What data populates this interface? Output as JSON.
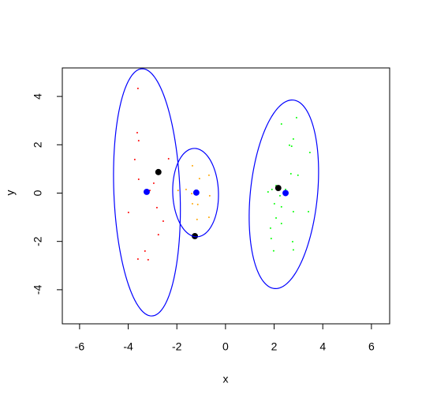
{
  "chart_data": {
    "type": "scatter",
    "xlabel": "x",
    "ylabel": "y",
    "xlim": [
      -6.71,
      6.75
    ],
    "ylim": [
      -5.41,
      5.18
    ],
    "xticks": [
      -6,
      -4,
      -2,
      0,
      2,
      4,
      6
    ],
    "yticks": [
      -4,
      -2,
      0,
      2,
      4
    ],
    "series": [
      {
        "color": "#ff0000",
        "cex": 0.3,
        "x": [
          -3.6,
          -3.63,
          -3.57,
          -3.73,
          -2.34,
          -3.57,
          -2.95,
          -3.11,
          -3.99,
          -2.82,
          -2.56,
          -2.76,
          -3.31,
          -3.6,
          -3.18
        ],
        "y": [
          4.33,
          2.5,
          2.17,
          1.39,
          1.42,
          0.57,
          0.41,
          0.11,
          -0.8,
          -0.6,
          -1.16,
          -1.72,
          -2.4,
          -2.73,
          -2.76
        ]
      },
      {
        "color": "#ffa500",
        "cex": 0.3,
        "x": [
          -1.36,
          -0.68,
          -1.07,
          -1.62,
          -1.95,
          -1.39,
          -0.65,
          -1.14,
          -1.36,
          -0.68,
          -1.17
        ],
        "y": [
          1.13,
          0.74,
          0.6,
          0.15,
          0.11,
          -0.02,
          -0.11,
          -0.47,
          -0.44,
          -1.0,
          -1.09
        ]
      },
      {
        "color": "#00ff00",
        "cex": 0.3,
        "x": [
          2.92,
          2.3,
          2.63,
          2.72,
          2.79,
          3.47,
          2.69,
          2.98,
          2.08,
          1.91,
          2.24,
          1.75,
          2.47,
          2.01,
          2.79,
          2.3,
          3.41,
          2.08,
          2.3,
          1.85,
          2.76,
          1.88,
          2.79,
          1.98
        ],
        "y": [
          3.12,
          2.86,
          1.98,
          1.94,
          2.24,
          1.68,
          0.8,
          0.74,
          0.31,
          0.15,
          -0.11,
          0.05,
          0.15,
          -0.44,
          -0.77,
          -0.57,
          -0.77,
          -1.03,
          -1.26,
          -1.45,
          -2.01,
          -1.88,
          -2.35,
          -2.39
        ]
      },
      {
        "color": "#0000ff",
        "cex": 1.2,
        "x": [
          -3.24,
          -1.2,
          2.47
        ],
        "y": [
          0.05,
          0.02,
          0.0
        ]
      },
      {
        "color": "#000000",
        "cex": 1.2,
        "x": [
          -2.76,
          -1.26,
          2.17
        ],
        "y": [
          0.87,
          -1.78,
          0.21
        ]
      }
    ],
    "ellipses": [
      {
        "color": "#0000ff",
        "center": [
          -3.23,
          0.03
        ],
        "axes": [
          5.12,
          1.36
        ],
        "angle": 92.3
      },
      {
        "color": "#0000ff",
        "center": [
          -1.23,
          0.02
        ],
        "axes": [
          1.83,
          0.94
        ],
        "angle": 92
      },
      {
        "color": "#0000ff",
        "center": [
          2.4,
          -0.05
        ],
        "axes": [
          3.92,
          1.38
        ],
        "angle": 84.3
      }
    ]
  }
}
